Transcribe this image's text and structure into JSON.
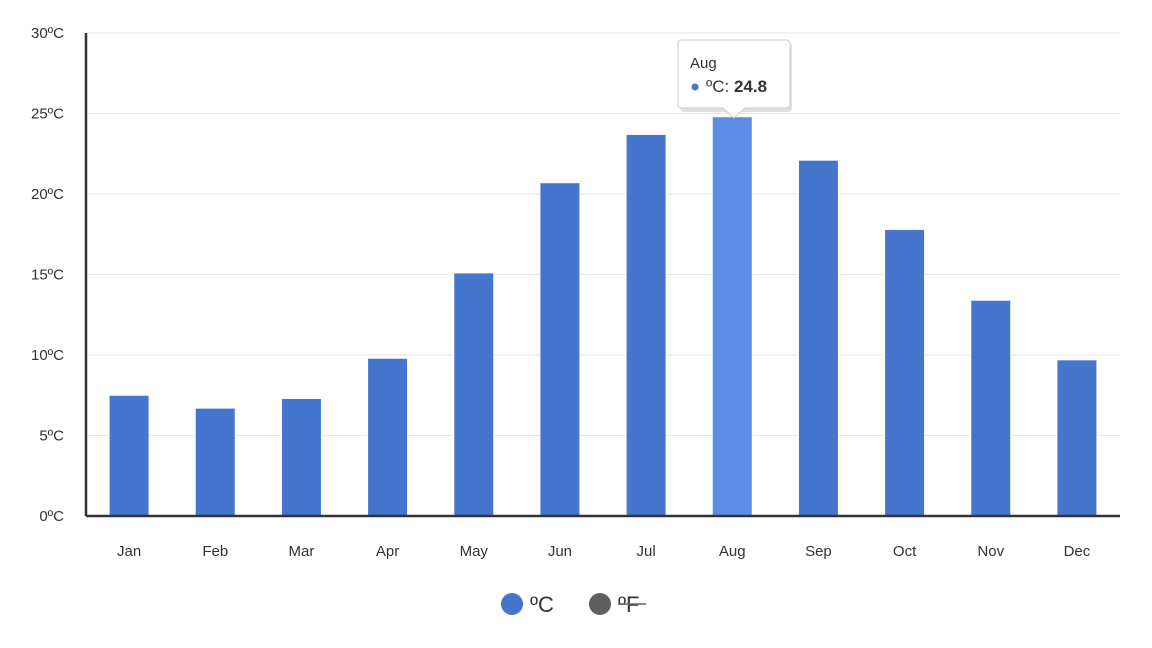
{
  "chart_data": {
    "type": "bar",
    "categories": [
      "Jan",
      "Feb",
      "Mar",
      "Apr",
      "May",
      "Jun",
      "Jul",
      "Aug",
      "Sep",
      "Oct",
      "Nov",
      "Dec"
    ],
    "series": [
      {
        "name": "ºC",
        "values": [
          7.5,
          6.7,
          7.3,
          9.8,
          15.1,
          20.7,
          23.7,
          24.8,
          22.1,
          17.8,
          13.4,
          9.7
        ],
        "color": "#4575cd",
        "visible": true
      },
      {
        "name": "ºF",
        "color": "#5f5f5f",
        "visible": false
      }
    ],
    "y_ticks": [
      "0ºC",
      "5ºC",
      "10ºC",
      "15ºC",
      "20ºC",
      "25ºC",
      "30ºC"
    ],
    "ylim": [
      0,
      30
    ],
    "grid": true,
    "legend_position": "bottom-center",
    "highlight_color": "#5c8ce3",
    "tooltip": {
      "category": "Aug",
      "series_label": "ºC",
      "value": "24.8"
    }
  }
}
